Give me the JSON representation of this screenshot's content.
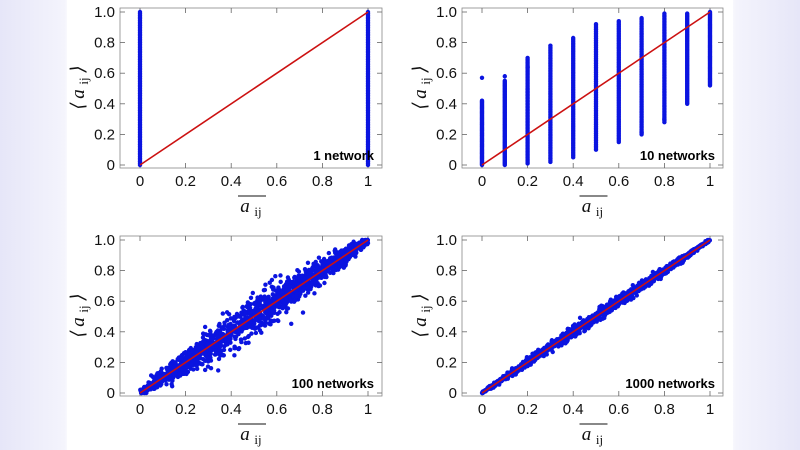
{
  "colors": {
    "points": "#0b14e0",
    "fit_line": "#cc1111",
    "frame": "#888888"
  },
  "chart_data": [
    {
      "type": "scatter",
      "annotation": "1 network",
      "xlabel": "a_ij (bar)",
      "ylabel": "⟨a_ij⟩",
      "xlim": [
        0,
        1
      ],
      "ylim": [
        0,
        1
      ],
      "x_ticks": [
        "0",
        "0.2",
        "0.4",
        "0.6",
        "0.8",
        "1"
      ],
      "y_ticks": [
        "0",
        "0.2",
        "0.4",
        "0.6",
        "0.8",
        "1.0"
      ],
      "point_columns": [
        {
          "x": 0,
          "y_min": 0,
          "y_max": 1
        },
        {
          "x": 1,
          "y_min": 0,
          "y_max": 1
        }
      ],
      "reference_line": {
        "from": [
          0,
          0
        ],
        "to": [
          1,
          1
        ]
      }
    },
    {
      "type": "scatter",
      "annotation": "10 networks",
      "xlabel": "a_ij (bar)",
      "ylabel": "⟨a_ij⟩",
      "xlim": [
        0,
        1
      ],
      "ylim": [
        0,
        1
      ],
      "x_ticks": [
        "0",
        "0.2",
        "0.4",
        "0.6",
        "0.8",
        "1"
      ],
      "y_ticks": [
        "0",
        "0.2",
        "0.4",
        "0.6",
        "0.8",
        "1.0"
      ],
      "point_columns": [
        {
          "x": 0.0,
          "y_min": 0.0,
          "y_max": 0.42
        },
        {
          "x": 0.1,
          "y_min": 0.0,
          "y_max": 0.55
        },
        {
          "x": 0.2,
          "y_min": 0.01,
          "y_max": 0.7
        },
        {
          "x": 0.3,
          "y_min": 0.02,
          "y_max": 0.77
        },
        {
          "x": 0.4,
          "y_min": 0.05,
          "y_max": 0.83
        },
        {
          "x": 0.5,
          "y_min": 0.1,
          "y_max": 0.92
        },
        {
          "x": 0.6,
          "y_min": 0.15,
          "y_max": 0.94
        },
        {
          "x": 0.7,
          "y_min": 0.2,
          "y_max": 0.96
        },
        {
          "x": 0.8,
          "y_min": 0.28,
          "y_max": 0.99
        },
        {
          "x": 0.9,
          "y_min": 0.4,
          "y_max": 0.99
        },
        {
          "x": 1.0,
          "y_min": 0.52,
          "y_max": 1.0
        }
      ],
      "outliers": [
        [
          0,
          0.57
        ],
        [
          0.1,
          0.58
        ],
        [
          0.2,
          0.64
        ],
        [
          0.3,
          0.78
        ],
        [
          0.7,
          0.21
        ],
        [
          0.8,
          0.3
        ]
      ],
      "reference_line": {
        "from": [
          0,
          0
        ],
        "to": [
          1,
          1
        ]
      }
    },
    {
      "type": "scatter",
      "annotation": "100 networks",
      "xlabel": "a_ij (bar)",
      "ylabel": "⟨a_ij⟩",
      "xlim": [
        0,
        1
      ],
      "ylim": [
        0,
        1
      ],
      "x_ticks": [
        "0",
        "0.2",
        "0.4",
        "0.6",
        "0.8",
        "1"
      ],
      "y_ticks": [
        "0",
        "0.2",
        "0.4",
        "0.6",
        "0.8",
        "1.0"
      ],
      "band": {
        "spread_at_center": 0.1,
        "spread_at_ends": 0.02,
        "outer_scatter": 0.14
      },
      "reference_line": {
        "from": [
          0,
          0
        ],
        "to": [
          1,
          1
        ]
      }
    },
    {
      "type": "scatter",
      "annotation": "1000 networks",
      "xlabel": "a_ij (bar)",
      "ylabel": "⟨a_ij⟩",
      "xlim": [
        0,
        1
      ],
      "ylim": [
        0,
        1
      ],
      "x_ticks": [
        "0",
        "0.2",
        "0.4",
        "0.6",
        "0.8",
        "1"
      ],
      "y_ticks": [
        "0",
        "0.2",
        "0.4",
        "0.6",
        "0.8",
        "1.0"
      ],
      "band": {
        "spread_at_center": 0.03,
        "spread_at_ends": 0.006,
        "outer_scatter": 0.045
      },
      "reference_line": {
        "from": [
          0,
          0
        ],
        "to": [
          1,
          1
        ]
      }
    }
  ],
  "axis_symbol": {
    "main": "a",
    "sub": "ij",
    "bra": "⟨",
    "ket": "⟩"
  }
}
